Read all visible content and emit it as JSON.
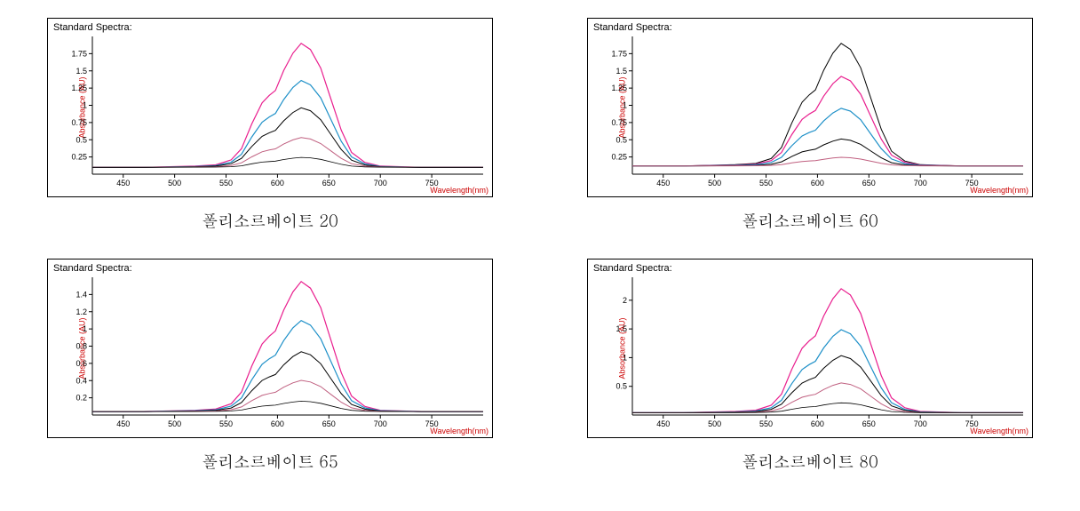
{
  "charts": [
    {
      "title": "Standard Spectra:",
      "caption": "폴리소르베이트 20",
      "ylabel": "Absorbance (AU)",
      "xlabel": "Wavelength(nm)",
      "xlim": [
        420,
        800
      ],
      "yticks": [
        0.25,
        0.5,
        0.75,
        1,
        1.25,
        1.5,
        1.75
      ],
      "xticks": [
        450,
        500,
        550,
        600,
        650,
        700,
        750
      ],
      "background_color": "#ffffff",
      "axis_color": "#000000",
      "series": [
        {
          "color": "#e91e8e",
          "scale": 1.0,
          "line_width": 1.2
        },
        {
          "color": "#1e90c8",
          "scale": 0.7,
          "line_width": 1.2
        },
        {
          "color": "#000000",
          "scale": 0.48,
          "line_width": 1.0
        },
        {
          "color": "#c06080",
          "scale": 0.24,
          "line_width": 1.0
        },
        {
          "color": "#000000",
          "scale": 0.08,
          "line_width": 0.8
        }
      ],
      "ymax_display": 2.0,
      "peak_max": 1.9,
      "baseline": 0.1
    },
    {
      "title": "Standard Spectra:",
      "caption": "폴리소르베이트 60",
      "ylabel": "Absorbance (AU)",
      "xlabel": "Wavelength(nm)",
      "xlim": [
        420,
        800
      ],
      "yticks": [
        0.25,
        0.5,
        0.75,
        1,
        1.25,
        1.5,
        1.75
      ],
      "xticks": [
        450,
        500,
        550,
        600,
        650,
        700,
        750
      ],
      "background_color": "#ffffff",
      "axis_color": "#000000",
      "series": [
        {
          "color": "#000000",
          "scale": 1.0,
          "line_width": 1.0
        },
        {
          "color": "#e91e8e",
          "scale": 0.73,
          "line_width": 1.2
        },
        {
          "color": "#1e90c8",
          "scale": 0.47,
          "line_width": 1.2
        },
        {
          "color": "#000000",
          "scale": 0.22,
          "line_width": 1.0
        },
        {
          "color": "#c06080",
          "scale": 0.07,
          "line_width": 1.0
        }
      ],
      "ymax_display": 2.0,
      "peak_max": 1.9,
      "baseline": 0.12
    },
    {
      "title": "Standard Spectra:",
      "caption": "폴리소르베이트 65",
      "ylabel": "Absorbance (AU)",
      "xlabel": "Wavelength(nm)",
      "xlim": [
        420,
        800
      ],
      "yticks": [
        0.2,
        0.4,
        0.6,
        0.8,
        1,
        1.2,
        1.4
      ],
      "xticks": [
        450,
        500,
        550,
        600,
        650,
        700,
        750
      ],
      "background_color": "#ffffff",
      "axis_color": "#000000",
      "series": [
        {
          "color": "#e91e8e",
          "scale": 1.0,
          "line_width": 1.2
        },
        {
          "color": "#1e90c8",
          "scale": 0.7,
          "line_width": 1.2
        },
        {
          "color": "#000000",
          "scale": 0.46,
          "line_width": 1.0
        },
        {
          "color": "#c06080",
          "scale": 0.24,
          "line_width": 1.0
        },
        {
          "color": "#000000",
          "scale": 0.08,
          "line_width": 0.8
        }
      ],
      "ymax_display": 1.6,
      "peak_max": 1.55,
      "baseline": 0.04
    },
    {
      "title": "Standard Spectra:",
      "caption": "폴리소르베이트 80",
      "ylabel": "Absorbance (AU)",
      "xlabel": "Wavelength(nm)",
      "xlim": [
        420,
        800
      ],
      "yticks": [
        0.5,
        1,
        1.5,
        2
      ],
      "xticks": [
        450,
        500,
        550,
        600,
        650,
        700,
        750
      ],
      "background_color": "#ffffff",
      "axis_color": "#000000",
      "series": [
        {
          "color": "#e91e8e",
          "scale": 1.0,
          "line_width": 1.2
        },
        {
          "color": "#1e90c8",
          "scale": 0.67,
          "line_width": 1.2
        },
        {
          "color": "#000000",
          "scale": 0.46,
          "line_width": 1.0
        },
        {
          "color": "#c06080",
          "scale": 0.24,
          "line_width": 1.0
        },
        {
          "color": "#000000",
          "scale": 0.08,
          "line_width": 0.8
        }
      ],
      "ymax_display": 2.4,
      "peak_max": 2.2,
      "baseline": 0.04
    }
  ],
  "spectrum_shape": {
    "comment": "normalized spectral points x(nm) -> y(0..1), shared across panels; each series scaled",
    "points": [
      [
        420,
        0.0
      ],
      [
        470,
        0.0
      ],
      [
        520,
        0.01
      ],
      [
        540,
        0.02
      ],
      [
        555,
        0.06
      ],
      [
        565,
        0.15
      ],
      [
        575,
        0.35
      ],
      [
        585,
        0.52
      ],
      [
        592,
        0.58
      ],
      [
        598,
        0.62
      ],
      [
        606,
        0.78
      ],
      [
        615,
        0.92
      ],
      [
        623,
        1.0
      ],
      [
        632,
        0.95
      ],
      [
        642,
        0.8
      ],
      [
        652,
        0.55
      ],
      [
        662,
        0.3
      ],
      [
        672,
        0.12
      ],
      [
        685,
        0.04
      ],
      [
        700,
        0.01
      ],
      [
        740,
        0.0
      ],
      [
        800,
        0.0
      ]
    ]
  }
}
